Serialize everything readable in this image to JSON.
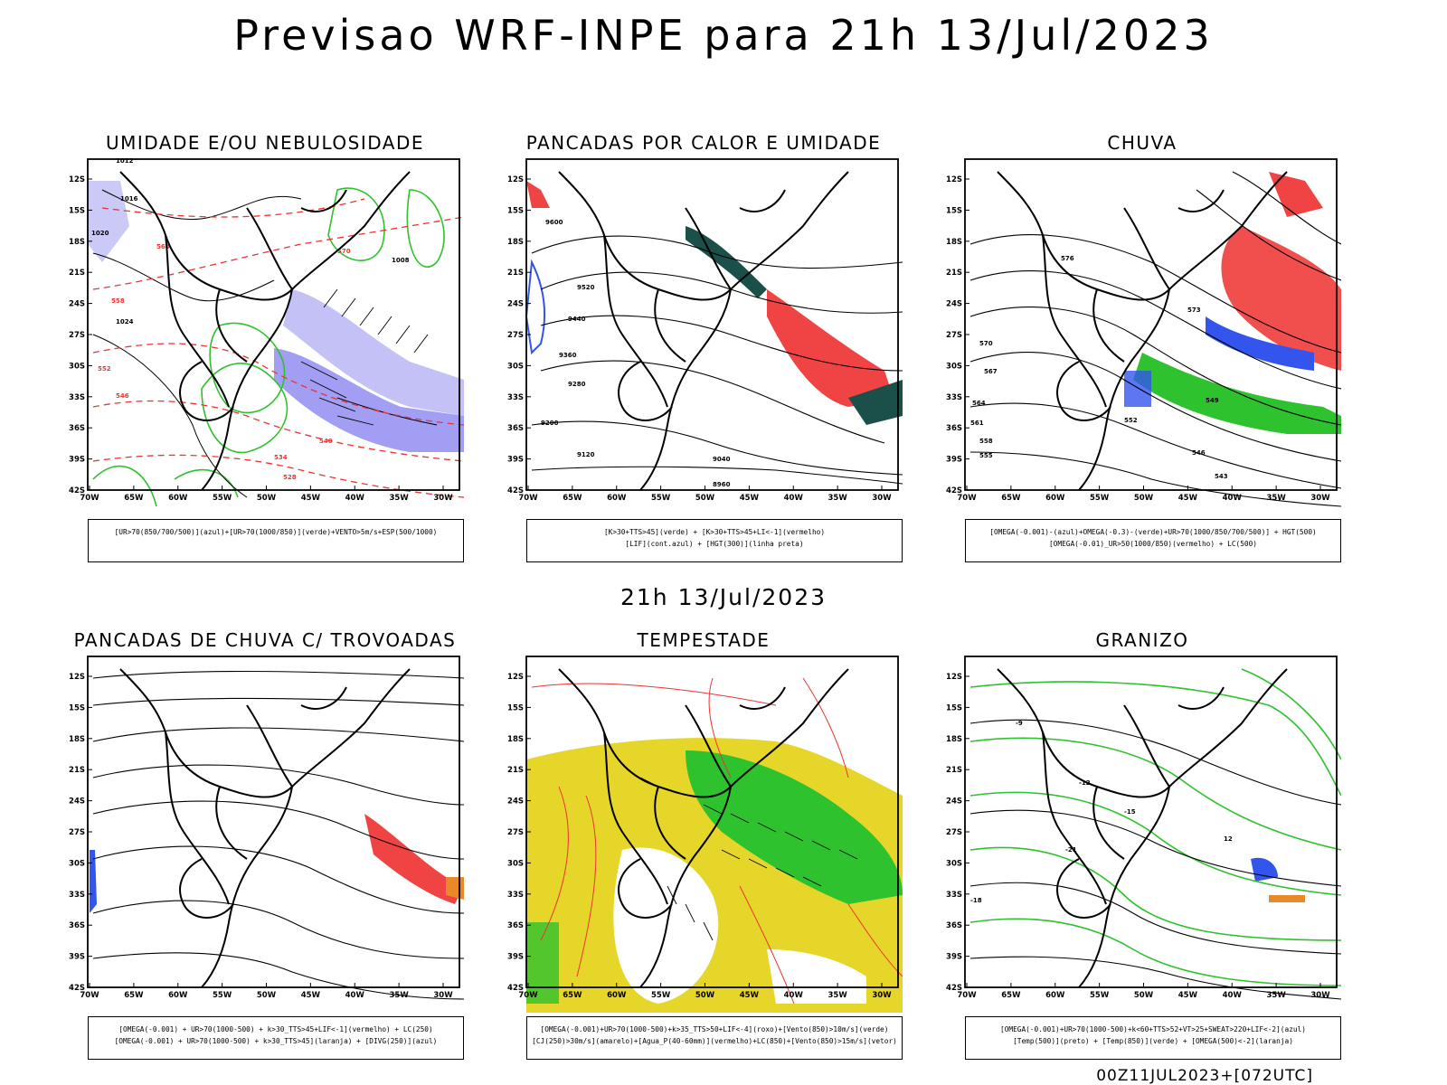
{
  "header": {
    "title": "Previsao WRF-INPE  para 21h 13/Jul/2023",
    "mid_date": "21h 13/Jul/2023",
    "footer": "00Z11JUL2023+[072UTC]"
  },
  "axes": {
    "lat_labels": [
      "12S",
      "15S",
      "18S",
      "21S",
      "24S",
      "27S",
      "30S",
      "33S",
      "36S",
      "39S",
      "42S"
    ],
    "lon_labels": [
      "70W",
      "65W",
      "60W",
      "55W",
      "50W",
      "45W",
      "40W",
      "35W",
      "30W"
    ]
  },
  "panels": [
    {
      "id": "umidade",
      "title": "UMIDADE E/OU NEBULOSIDADE",
      "legend": [
        "[UR>70(850/700/500)](azul)+[UR>70(1000/850)](verde)+VENTO>5m/s+ESP(500/1000)"
      ],
      "contour_labels": [
        "1012",
        "1016",
        "1020",
        "1024",
        "1008",
        "570",
        "564",
        "558",
        "552",
        "546",
        "540",
        "534",
        "528"
      ]
    },
    {
      "id": "pancadas-calor",
      "title": "PANCADAS POR CALOR E UMIDADE",
      "legend": [
        "[K>30+TTS>45](verde) + [K>30+TTS>45+LI<-1](vermelho)",
        "[LIF](cont.azul) + [HGT(300)](linha preta)"
      ],
      "contour_labels": [
        "9600",
        "9520",
        "9440",
        "9360",
        "9280",
        "9200",
        "9120",
        "9040",
        "8960"
      ]
    },
    {
      "id": "chuva",
      "title": "CHUVA",
      "legend": [
        "[OMEGA(-0.001)-(azul)+OMEGA(-0.3)-(verde)+UR>70(1000/850/700/500)] + HGT(500)",
        "[OMEGA(-0.01)_UR>50(1000/850)(vermelho) + LC(500)"
      ],
      "contour_labels": [
        "576",
        "573",
        "570",
        "567",
        "564",
        "561",
        "558",
        "555",
        "552",
        "549",
        "546",
        "543"
      ]
    },
    {
      "id": "trovoadas",
      "title": "PANCADAS DE CHUVA C/ TROVOADAS",
      "legend": [
        "[OMEGA(-0.001) + UR>70(1000-500) + k>30_TTS>45+LIF<-1](vermelho) + LC(250)",
        "[OMEGA(-0.001) + UR>70(1000-500) + k>30_TTS>45](laranja) + [DIVG(250)](azul)"
      ],
      "contour_labels": []
    },
    {
      "id": "tempestade",
      "title": "TEMPESTADE",
      "legend": [
        "[OMEGA(-0.001)+UR>70(1000-500)+k>35_TTS>50+LIF<-4](roxo)+[Vento(850)>10m/s](verde)",
        "[CJ(250)>30m/s](amarelo)+[Agua_P(40-60mm)](vermelho)+LC(850)+[Vento(850)>15m/s](vetor)"
      ],
      "contour_labels": []
    },
    {
      "id": "granizo",
      "title": "GRANIZO",
      "legend": [
        "[OMEGA(-0.001)+UR>70(1000-500)+k<60+TTS>52+VT>25+SWEAT>220+LIF<-2](azul)",
        "[Temp(500)](preto) + [Temp(850)](verde) + [OMEGA(500)<-2](laranja)"
      ],
      "contour_labels": [
        "-9",
        "-12",
        "-15",
        "-18",
        "-21",
        "12"
      ]
    }
  ]
}
